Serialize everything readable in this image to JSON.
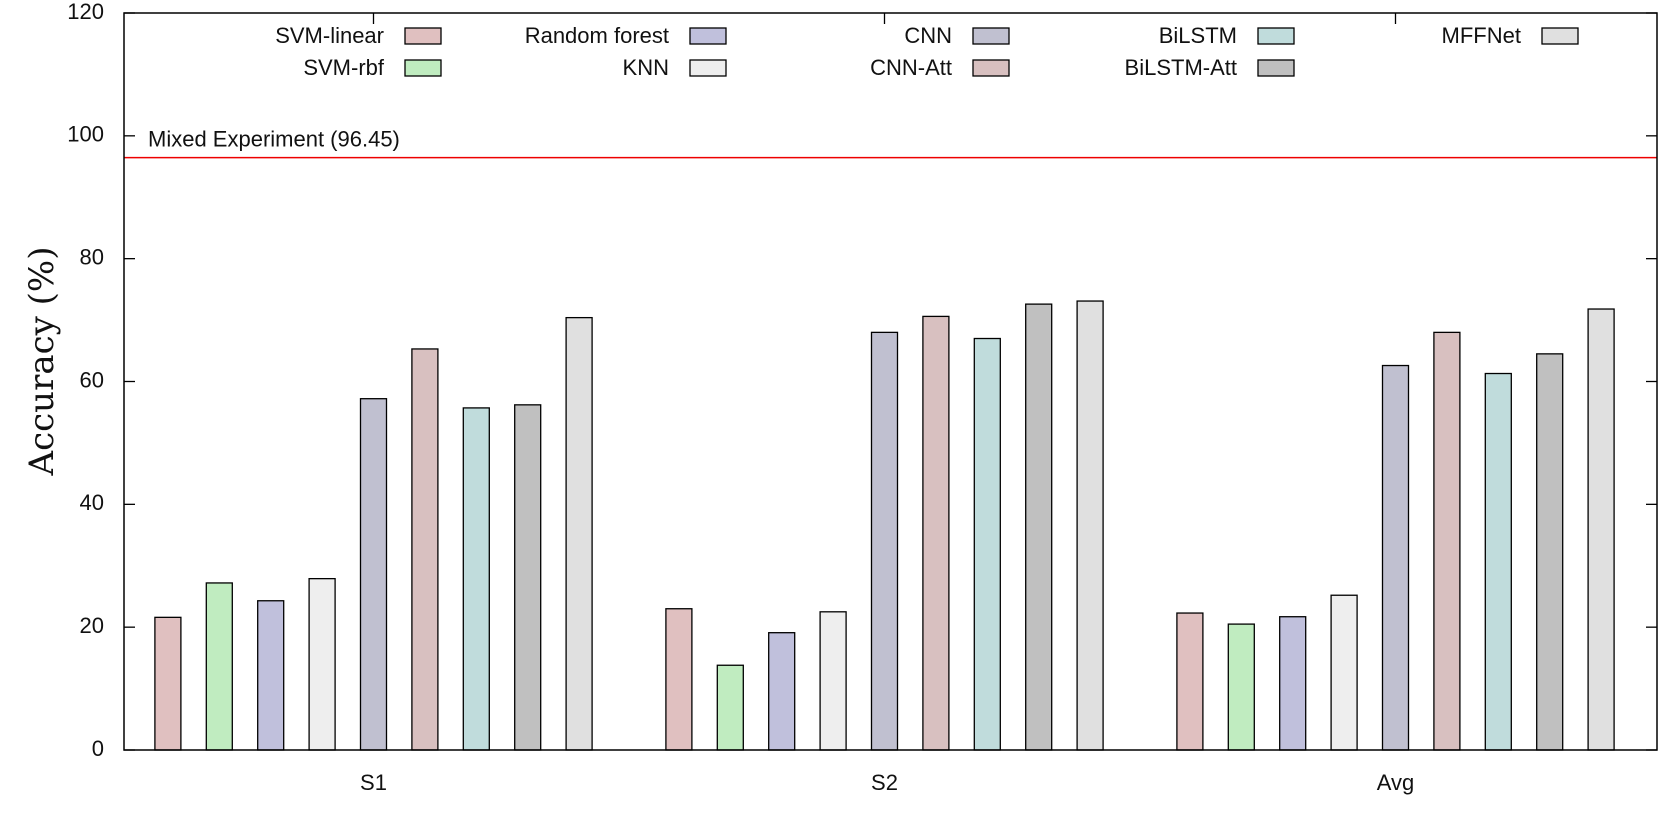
{
  "chart_data": {
    "type": "bar",
    "title": "",
    "xlabel": "",
    "ylabel": "Accuracy (%)",
    "ylim": [
      0,
      120
    ],
    "yticks": [
      0,
      20,
      40,
      60,
      80,
      100,
      120
    ],
    "categories": [
      "S1",
      "S2",
      "Avg"
    ],
    "grid": false,
    "legend_position": "top",
    "series": [
      {
        "name": "SVM-linear",
        "color": "#e0c0c0",
        "values": [
          21.6,
          23.0,
          22.3
        ]
      },
      {
        "name": "SVM-rbf",
        "color": "#c0ecc0",
        "values": [
          27.2,
          13.8,
          20.5
        ]
      },
      {
        "name": "Random forest",
        "color": "#c0c0dc",
        "values": [
          24.3,
          19.1,
          21.7
        ]
      },
      {
        "name": "KNN",
        "color": "#eeeeee",
        "values": [
          27.9,
          22.5,
          25.2
        ]
      },
      {
        "name": "CNN",
        "color": "#c0c0d0",
        "values": [
          57.2,
          68.0,
          62.6
        ]
      },
      {
        "name": "CNN-Att",
        "color": "#d8c0c0",
        "values": [
          65.3,
          70.6,
          68.0
        ]
      },
      {
        "name": "BiLSTM",
        "color": "#c0dcdc",
        "values": [
          55.7,
          67.0,
          61.3
        ]
      },
      {
        "name": "BiLSTM-Att",
        "color": "#c0c0c0",
        "values": [
          56.2,
          72.6,
          64.5
        ]
      },
      {
        "name": "MFFNet",
        "color": "#e0e0e0",
        "values": [
          70.4,
          73.1,
          71.8
        ]
      }
    ],
    "reference_line": {
      "label": "Mixed Experiment (96.45)",
      "value": 96.45,
      "color": "#ee0000"
    }
  }
}
